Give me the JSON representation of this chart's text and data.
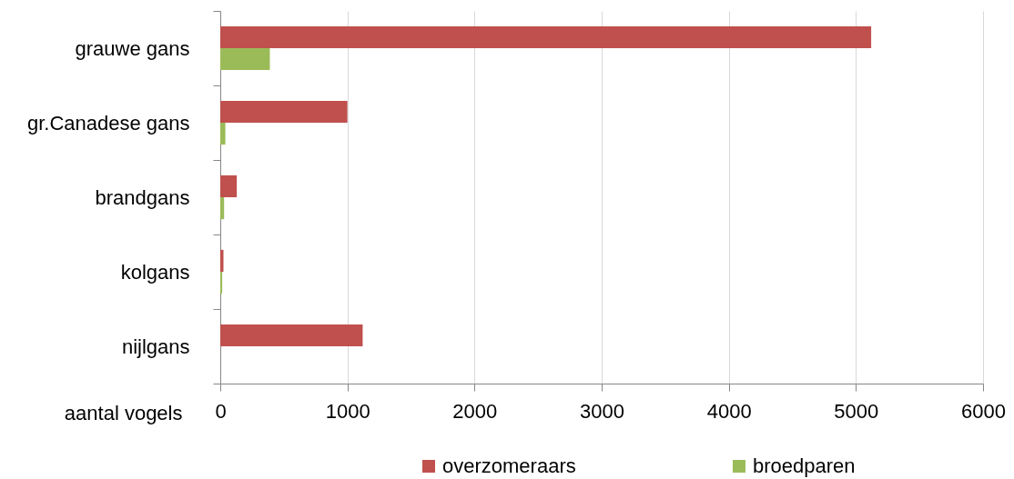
{
  "chart_data": {
    "type": "bar",
    "orientation": "horizontal",
    "xlabel": "aantal vogels",
    "categories": [
      "grauwe gans",
      "gr.Canadese gans",
      "brandgans",
      "kolgans",
      "nijlgans"
    ],
    "series": [
      {
        "name": "overzomeraars",
        "color": "#c0504d",
        "values": [
          5120,
          1000,
          130,
          25,
          1120
        ]
      },
      {
        "name": "broedparen",
        "color": "#9bbb59",
        "values": [
          390,
          40,
          30,
          15,
          null
        ]
      }
    ],
    "xlim": [
      0,
      6000
    ],
    "xticks": [
      0,
      1000,
      2000,
      3000,
      4000,
      5000,
      6000
    ],
    "grid": "x",
    "legend": "bottom"
  }
}
